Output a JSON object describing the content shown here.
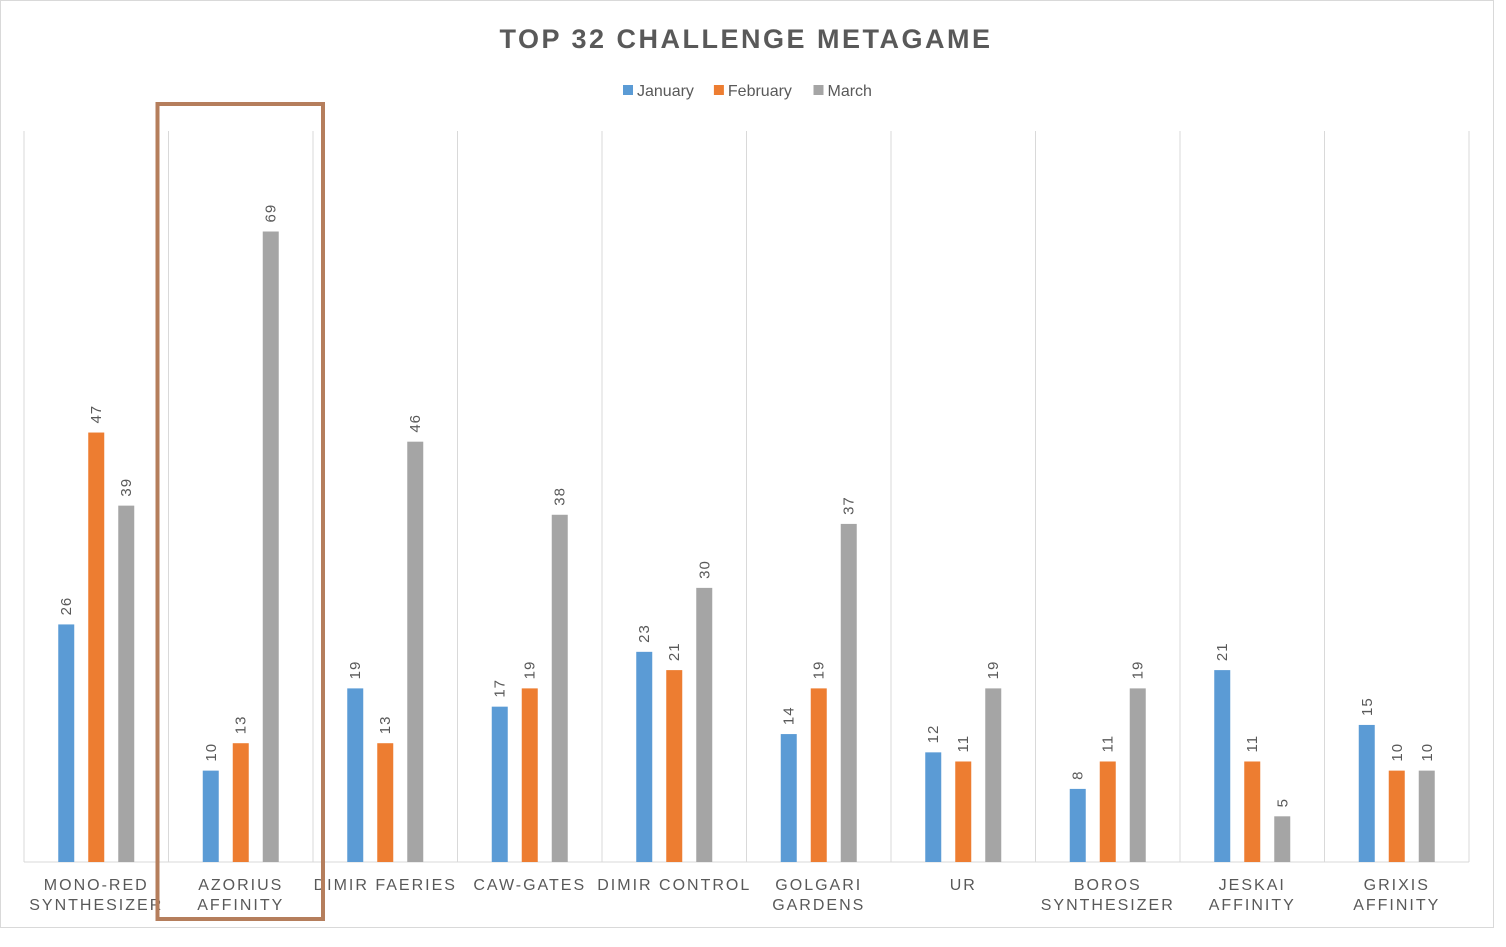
{
  "chart_data": {
    "type": "bar",
    "title": "TOP 32 CHALLENGE METAGAME",
    "xlabel": "",
    "ylabel": "",
    "ylim": [
      0,
      80
    ],
    "grid": "vertical category separators",
    "legend_position": "top",
    "categories": [
      [
        "MONO-RED",
        "SYNTHESIZER"
      ],
      [
        "AZORIUS",
        "AFFINITY"
      ],
      [
        "DIMIR FAERIES"
      ],
      [
        "CAW-GATES"
      ],
      [
        "DIMIR CONTROL"
      ],
      [
        "GOLGARI",
        "GARDENS"
      ],
      [
        "UR"
      ],
      [
        "BOROS",
        "SYNTHESIZER"
      ],
      [
        "JESKAI",
        "AFFINITY"
      ],
      [
        "GRIXIS",
        "AFFINITY"
      ]
    ],
    "series": [
      {
        "name": "January",
        "color": "#5b9bd5",
        "values": [
          26,
          10,
          19,
          17,
          23,
          14,
          12,
          8,
          21,
          15
        ]
      },
      {
        "name": "February",
        "color": "#ed7d31",
        "values": [
          47,
          13,
          13,
          19,
          21,
          19,
          11,
          11,
          11,
          10
        ]
      },
      {
        "name": "March",
        "color": "#a5a5a5",
        "values": [
          39,
          69,
          46,
          38,
          30,
          37,
          19,
          19,
          5,
          10
        ]
      }
    ],
    "highlighted_category_index": 1,
    "highlight_color": "#b57e5c",
    "gridline_color": "#d9d9d9",
    "label_color": "#595959"
  }
}
